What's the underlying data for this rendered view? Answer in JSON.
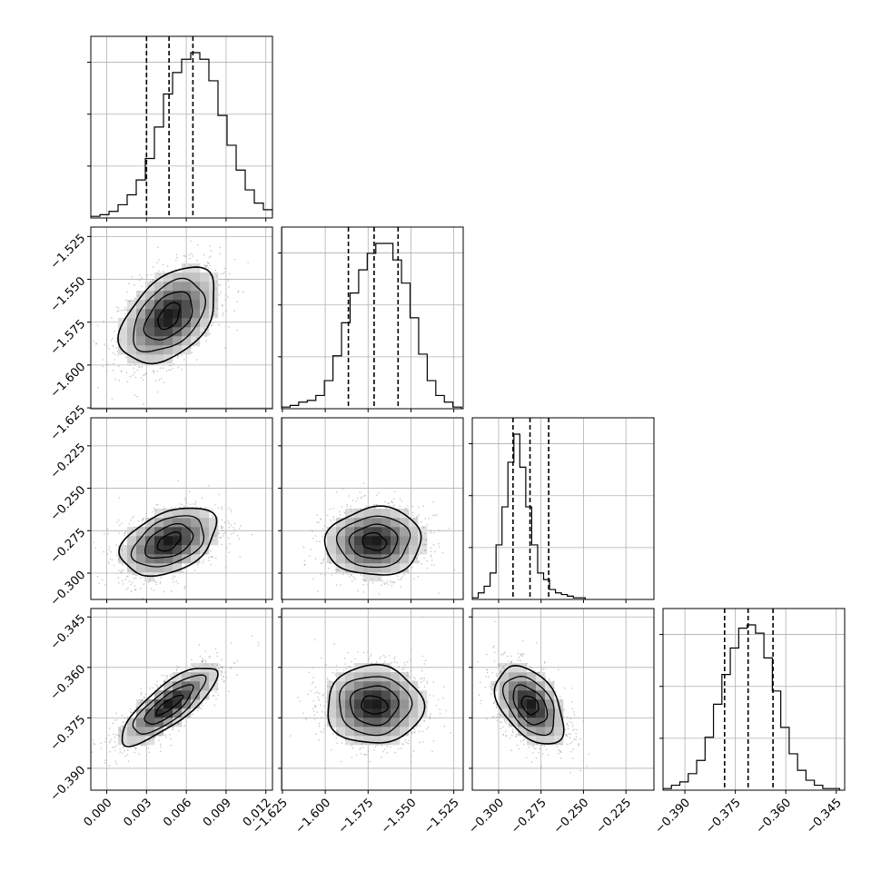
{
  "chart_data": {
    "type": "corner",
    "parameters": [
      {
        "ticks": [
          0.0,
          0.003,
          0.006,
          0.009,
          0.012
        ],
        "tick_labels": [
          "0.000",
          "0.003",
          "0.006",
          "0.009",
          "0.012"
        ],
        "range": [
          -0.0012,
          0.0125
        ],
        "quantiles": [
          0.003,
          0.0047,
          0.0065
        ],
        "histogram": {
          "edges_start": -0.0012,
          "bin_width": 0.000685,
          "counts": [
            1,
            2,
            4,
            8,
            14,
            23,
            36,
            55,
            75,
            88,
            96,
            100,
            96,
            83,
            62,
            44,
            29,
            17,
            9,
            5,
            2,
            1
          ]
        }
      },
      {
        "ticks": [
          -1.625,
          -1.6,
          -1.575,
          -1.55,
          -1.525
        ],
        "tick_labels": [
          "−1.625",
          "−1.600",
          "−1.575",
          "−1.550",
          "−1.525"
        ],
        "range": [
          -1.6255,
          -1.5195
        ],
        "quantiles": [
          -1.5865,
          -1.5715,
          -1.5575
        ],
        "histogram": {
          "edges_start": -1.6255,
          "bin_width": 0.005,
          "counts": [
            1,
            2,
            4,
            5,
            8,
            17,
            32,
            52,
            70,
            84,
            94,
            100,
            100,
            90,
            76,
            55,
            33,
            17,
            8,
            4,
            1
          ]
        }
      },
      {
        "ticks": [
          -0.3,
          -0.275,
          -0.25,
          -0.225
        ],
        "tick_labels": [
          "−0.300",
          "−0.275",
          "−0.250",
          "−0.225"
        ],
        "range": [
          -0.3155,
          -0.2085
        ],
        "quantiles": [
          -0.2915,
          -0.2815,
          -0.2705
        ],
        "histogram": {
          "edges_start": -0.3155,
          "bin_width": 0.0035,
          "counts": [
            1,
            4,
            8,
            16,
            33,
            56,
            83,
            100,
            80,
            56,
            33,
            16,
            12,
            6,
            4,
            3,
            2,
            1,
            1
          ]
        }
      },
      {
        "ticks": [
          -0.39,
          -0.375,
          -0.36,
          -0.345
        ],
        "tick_labels": [
          "−0.390",
          "−0.375",
          "−0.360",
          "−0.345"
        ],
        "range": [
          -0.3965,
          -0.3425
        ],
        "quantiles": [
          -0.3782,
          -0.3712,
          -0.3638
        ],
        "histogram": {
          "edges_start": -0.3965,
          "bin_width": 0.0025,
          "counts": [
            1,
            3,
            5,
            10,
            18,
            32,
            52,
            70,
            86,
            98,
            100,
            95,
            80,
            60,
            38,
            22,
            12,
            6,
            3,
            1,
            1
          ]
        }
      }
    ],
    "pairs": [
      {
        "row": 1,
        "col": 0,
        "center": [
          0.0047,
          -1.5715
        ],
        "sigma": [
          0.0018,
          0.014
        ],
        "rho": 0.45
      },
      {
        "row": 2,
        "col": 0,
        "center": [
          0.0047,
          -0.2815
        ],
        "sigma": [
          0.0018,
          0.01
        ],
        "rho": 0.4
      },
      {
        "row": 2,
        "col": 1,
        "center": [
          -1.5715,
          -0.2815
        ],
        "sigma": [
          0.014,
          0.01
        ],
        "rho": 0.05
      },
      {
        "row": 3,
        "col": 0,
        "center": [
          0.0047,
          -0.3712
        ],
        "sigma": [
          0.0018,
          0.0058
        ],
        "rho": 0.8
      },
      {
        "row": 3,
        "col": 1,
        "center": [
          -1.5715,
          -0.3712
        ],
        "sigma": [
          0.014,
          0.0058
        ],
        "rho": 0.0
      },
      {
        "row": 3,
        "col": 2,
        "center": [
          -0.2815,
          -0.3712
        ],
        "sigma": [
          0.01,
          0.0058
        ],
        "rho": -0.45
      }
    ],
    "contour_levels_sigma": [
      0.5,
      1.0,
      1.5,
      2.0
    ],
    "grid": true,
    "title": "",
    "xlabel": "",
    "ylabel": ""
  }
}
